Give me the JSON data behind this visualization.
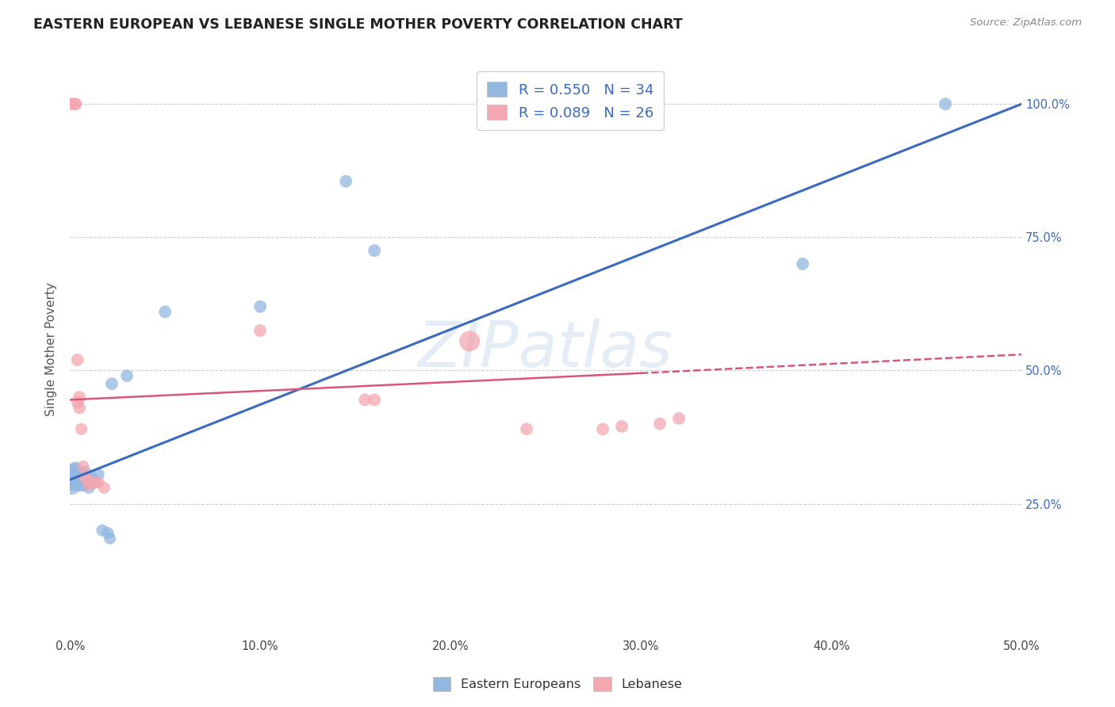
{
  "title": "EASTERN EUROPEAN VS LEBANESE SINGLE MOTHER POVERTY CORRELATION CHART",
  "source": "Source: ZipAtlas.com",
  "ylabel": "Single Mother Poverty",
  "xlim": [
    0.0,
    0.5
  ],
  "ylim": [
    0.0,
    1.08
  ],
  "xtick_labels": [
    "0.0%",
    "10.0%",
    "20.0%",
    "30.0%",
    "40.0%",
    "50.0%"
  ],
  "xtick_values": [
    0.0,
    0.1,
    0.2,
    0.3,
    0.4,
    0.5
  ],
  "ytick_labels": [
    "25.0%",
    "50.0%",
    "75.0%",
    "100.0%"
  ],
  "ytick_values": [
    0.25,
    0.5,
    0.75,
    1.0
  ],
  "legend_labels": [
    "Eastern Europeans",
    "Lebanese"
  ],
  "R_eastern": 0.55,
  "N_eastern": 34,
  "R_lebanese": 0.089,
  "N_lebanese": 26,
  "color_eastern": "#92b8e0",
  "color_lebanese": "#f4a7b0",
  "trendline_color_eastern": "#3a6abf",
  "trendline_color_lebanese": "#d9567a",
  "watermark": "ZIPatlas",
  "background_color": "#ffffff",
  "grid_color": "#d0d0d0",
  "eastern_x": [
    0.001,
    0.001,
    0.001,
    0.002,
    0.002,
    0.003,
    0.003,
    0.004,
    0.004,
    0.005,
    0.005,
    0.006,
    0.006,
    0.007,
    0.007,
    0.008,
    0.008,
    0.009,
    0.01,
    0.011,
    0.012,
    0.013,
    0.015,
    0.017,
    0.02,
    0.021,
    0.022,
    0.03,
    0.05,
    0.1,
    0.145,
    0.16,
    0.385,
    0.46
  ],
  "eastern_y": [
    0.295,
    0.305,
    0.285,
    0.31,
    0.29,
    0.3,
    0.315,
    0.295,
    0.305,
    0.3,
    0.285,
    0.295,
    0.305,
    0.285,
    0.295,
    0.3,
    0.31,
    0.295,
    0.28,
    0.3,
    0.295,
    0.29,
    0.305,
    0.2,
    0.195,
    0.185,
    0.475,
    0.49,
    0.61,
    0.62,
    0.855,
    0.725,
    0.7,
    1.0
  ],
  "eastern_size": [
    400,
    350,
    300,
    250,
    220,
    200,
    180,
    160,
    160,
    150,
    150,
    140,
    140,
    130,
    130,
    120,
    120,
    120,
    120,
    120,
    130,
    120,
    120,
    120,
    120,
    120,
    130,
    130,
    130,
    130,
    130,
    130,
    130,
    130
  ],
  "lebanese_x": [
    0.001,
    0.001,
    0.002,
    0.003,
    0.003,
    0.004,
    0.004,
    0.005,
    0.005,
    0.006,
    0.007,
    0.008,
    0.009,
    0.01,
    0.013,
    0.015,
    0.018,
    0.1,
    0.155,
    0.16,
    0.21,
    0.24,
    0.28,
    0.29,
    0.31,
    0.32
  ],
  "lebanese_y": [
    1.0,
    1.0,
    1.0,
    1.0,
    1.0,
    0.52,
    0.44,
    0.45,
    0.43,
    0.39,
    0.32,
    0.3,
    0.295,
    0.285,
    0.29,
    0.29,
    0.28,
    0.575,
    0.445,
    0.445,
    0.555,
    0.39,
    0.39,
    0.395,
    0.4,
    0.41
  ],
  "lebanese_size": [
    120,
    120,
    120,
    120,
    120,
    130,
    130,
    130,
    130,
    120,
    120,
    120,
    120,
    120,
    130,
    120,
    120,
    130,
    130,
    130,
    350,
    130,
    130,
    130,
    130,
    130
  ],
  "trendline_eastern_x0": 0.0,
  "trendline_eastern_y0": 0.295,
  "trendline_eastern_x1": 0.5,
  "trendline_eastern_y1": 1.0,
  "trendline_lebanese_x0": 0.0,
  "trendline_lebanese_y0": 0.445,
  "trendline_lebanese_solid_x1": 0.3,
  "trendline_lebanese_solid_y1": 0.495,
  "trendline_lebanese_dash_x1": 0.5,
  "trendline_lebanese_dash_y1": 0.53
}
